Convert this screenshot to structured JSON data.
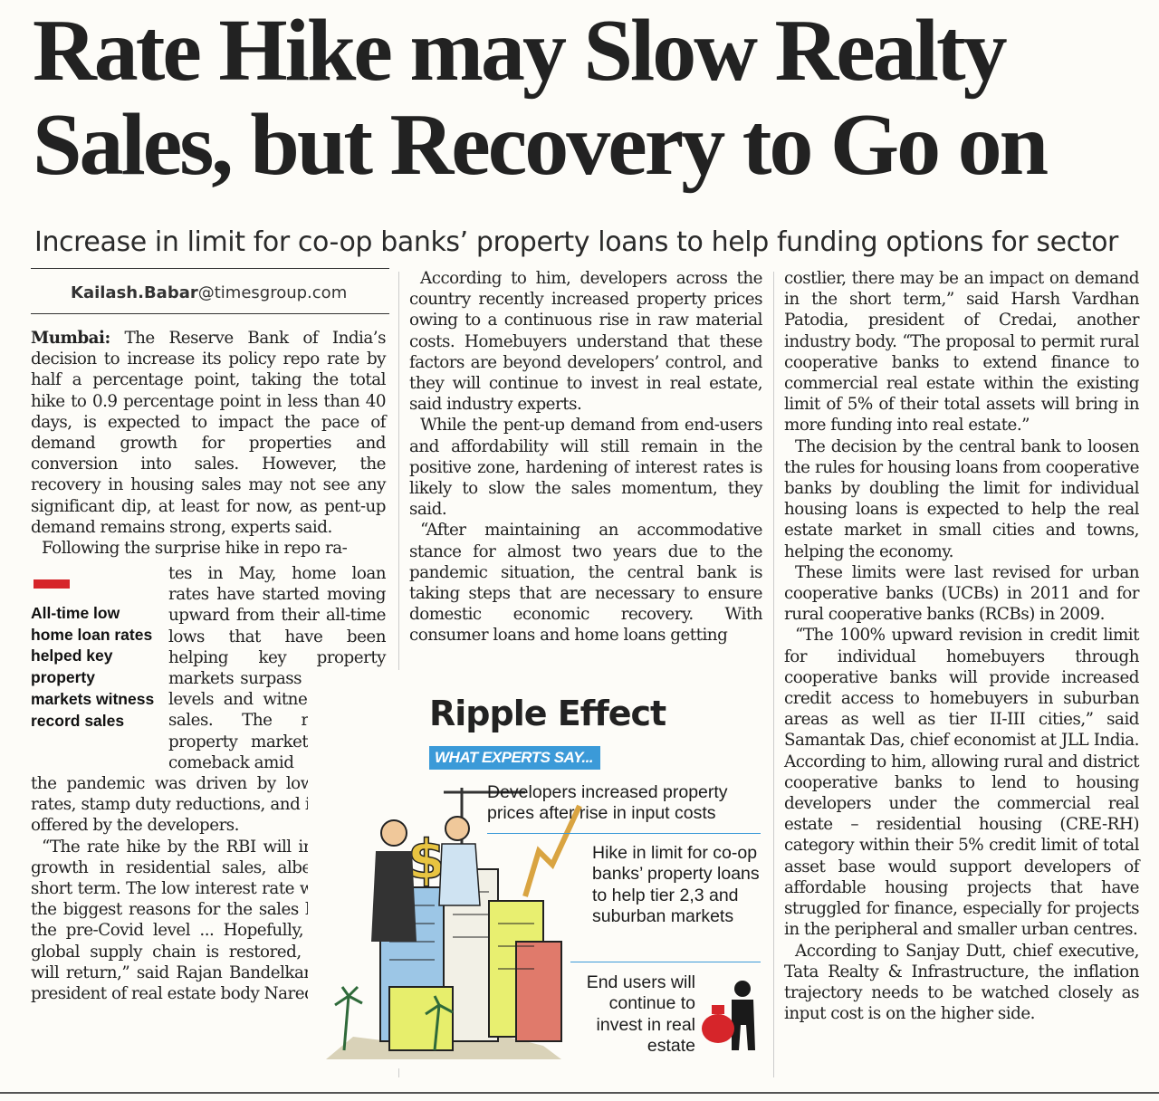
{
  "headline": "Rate Hike may Slow Realty Sales, but Recovery to Go on",
  "subheadline": "Increase in limit for co-op banks’ property loans to help funding options for sector",
  "byline": {
    "name": "Kailash.Babar",
    "domain": "@timesgroup.com"
  },
  "column1": {
    "dateline": "Mumbai:",
    "p1": "The Reserve Bank of India’s decision to increase its policy repo rate by half a percentage point, taking the total hike to 0.9 percentage point in less than 40 days, is expected to impact the pace of demand growth for properties and conversion into sales. However, the recovery in housing sales may not see any significant dip, at least for now, as pent-up demand remains strong, experts said.",
    "p2_start": "Following the surprise hike in repo ra-",
    "p2_wrap": "tes in May, home loan rates have started moving upward from their all-time lows that have been helping key property markets surpass pre-Covid levels and witness record sales. The residential property market’s robust comeback amid",
    "p2_end": "the pandemic was driven by low interest rates, stamp duty reductions, and incentives offered by the developers.",
    "p3": "“The rate hike by the RBI will impact the growth in residential sales, albeit in the short term. The low interest rate was one of the biggest reasons for the sales breaching the pre-Covid level ... Hopefully, once the global supply chain is restored, normalcy will return,” said Rajan Bandelkar, national president of real estate body Naredco."
  },
  "pullquote": "All-time low home loan rates helped key property markets witness record sales",
  "column2": {
    "p1": "According to him, developers across the country recently increased property prices owing to a continuous rise in raw material costs. Homebuyers understand that these factors are beyond developers’ control, and they will continue to invest in real estate, said industry experts.",
    "p2": "While the pent-up demand from end-users and affordability will still remain in the positive zone, hardening of interest rates is likely to slow the sales momentum, they said.",
    "p3": "“After maintaining an accommodative stance for almost two years due to the pandemic situation, the central bank is taking steps that are necessary to ensure domestic economic recovery. With consumer loans and home loans getting"
  },
  "graphic": {
    "title": "Ripple Effect",
    "badge": "WHAT EXPERTS SAY...",
    "item1": "Developers increased property prices after rise in input costs",
    "item2": "Hike in limit for co-op banks’ property loans to help tier 2,3 and suburban markets",
    "item3": "End users will continue to invest in real estate"
  },
  "column3": {
    "p1": "costlier, there may be an impact on demand in the short term,” said Harsh Vardhan Patodia, president of Credai, another industry body. “The proposal to permit rural cooperative banks to extend finance to commercial real estate within the existing limit of 5% of their total assets will bring in more funding into real estate.”",
    "p2": "The decision by the central bank to loosen the rules for housing loans from cooperative banks by doubling the limit for individual housing loans is expected to help the real estate market in small cities and towns, helping the economy.",
    "p3": "These limits were last revised for urban cooperative banks (UCBs) in 2011 and for rural cooperative banks (RCBs) in 2009.",
    "p4": "“The 100% upward revision in credit limit for individual homebuyers through cooperative banks will provide increased credit access to homebuyers in suburban areas as well as tier II-III cities,” said Samantak Das, chief economist at JLL India. According to him, allowing rural and district cooperative banks to lend to housing developers under the commercial real estate – residential housing (CRE-RH) category within their 5% credit limit of total asset base would support developers of affordable housing projects that have struggled for finance, especially for projects in the peripheral and smaller urban centres.",
    "p5": "According to Sanjay Dutt, chief executive, Tata Realty & Infrastructure, the inflation trajectory needs to be watched closely as input cost is on the higher side."
  },
  "colors": {
    "badge": "#3b9ad8",
    "marker": "#d6252a",
    "ink": "#1c1c1c",
    "paper": "#fdfcf8"
  }
}
